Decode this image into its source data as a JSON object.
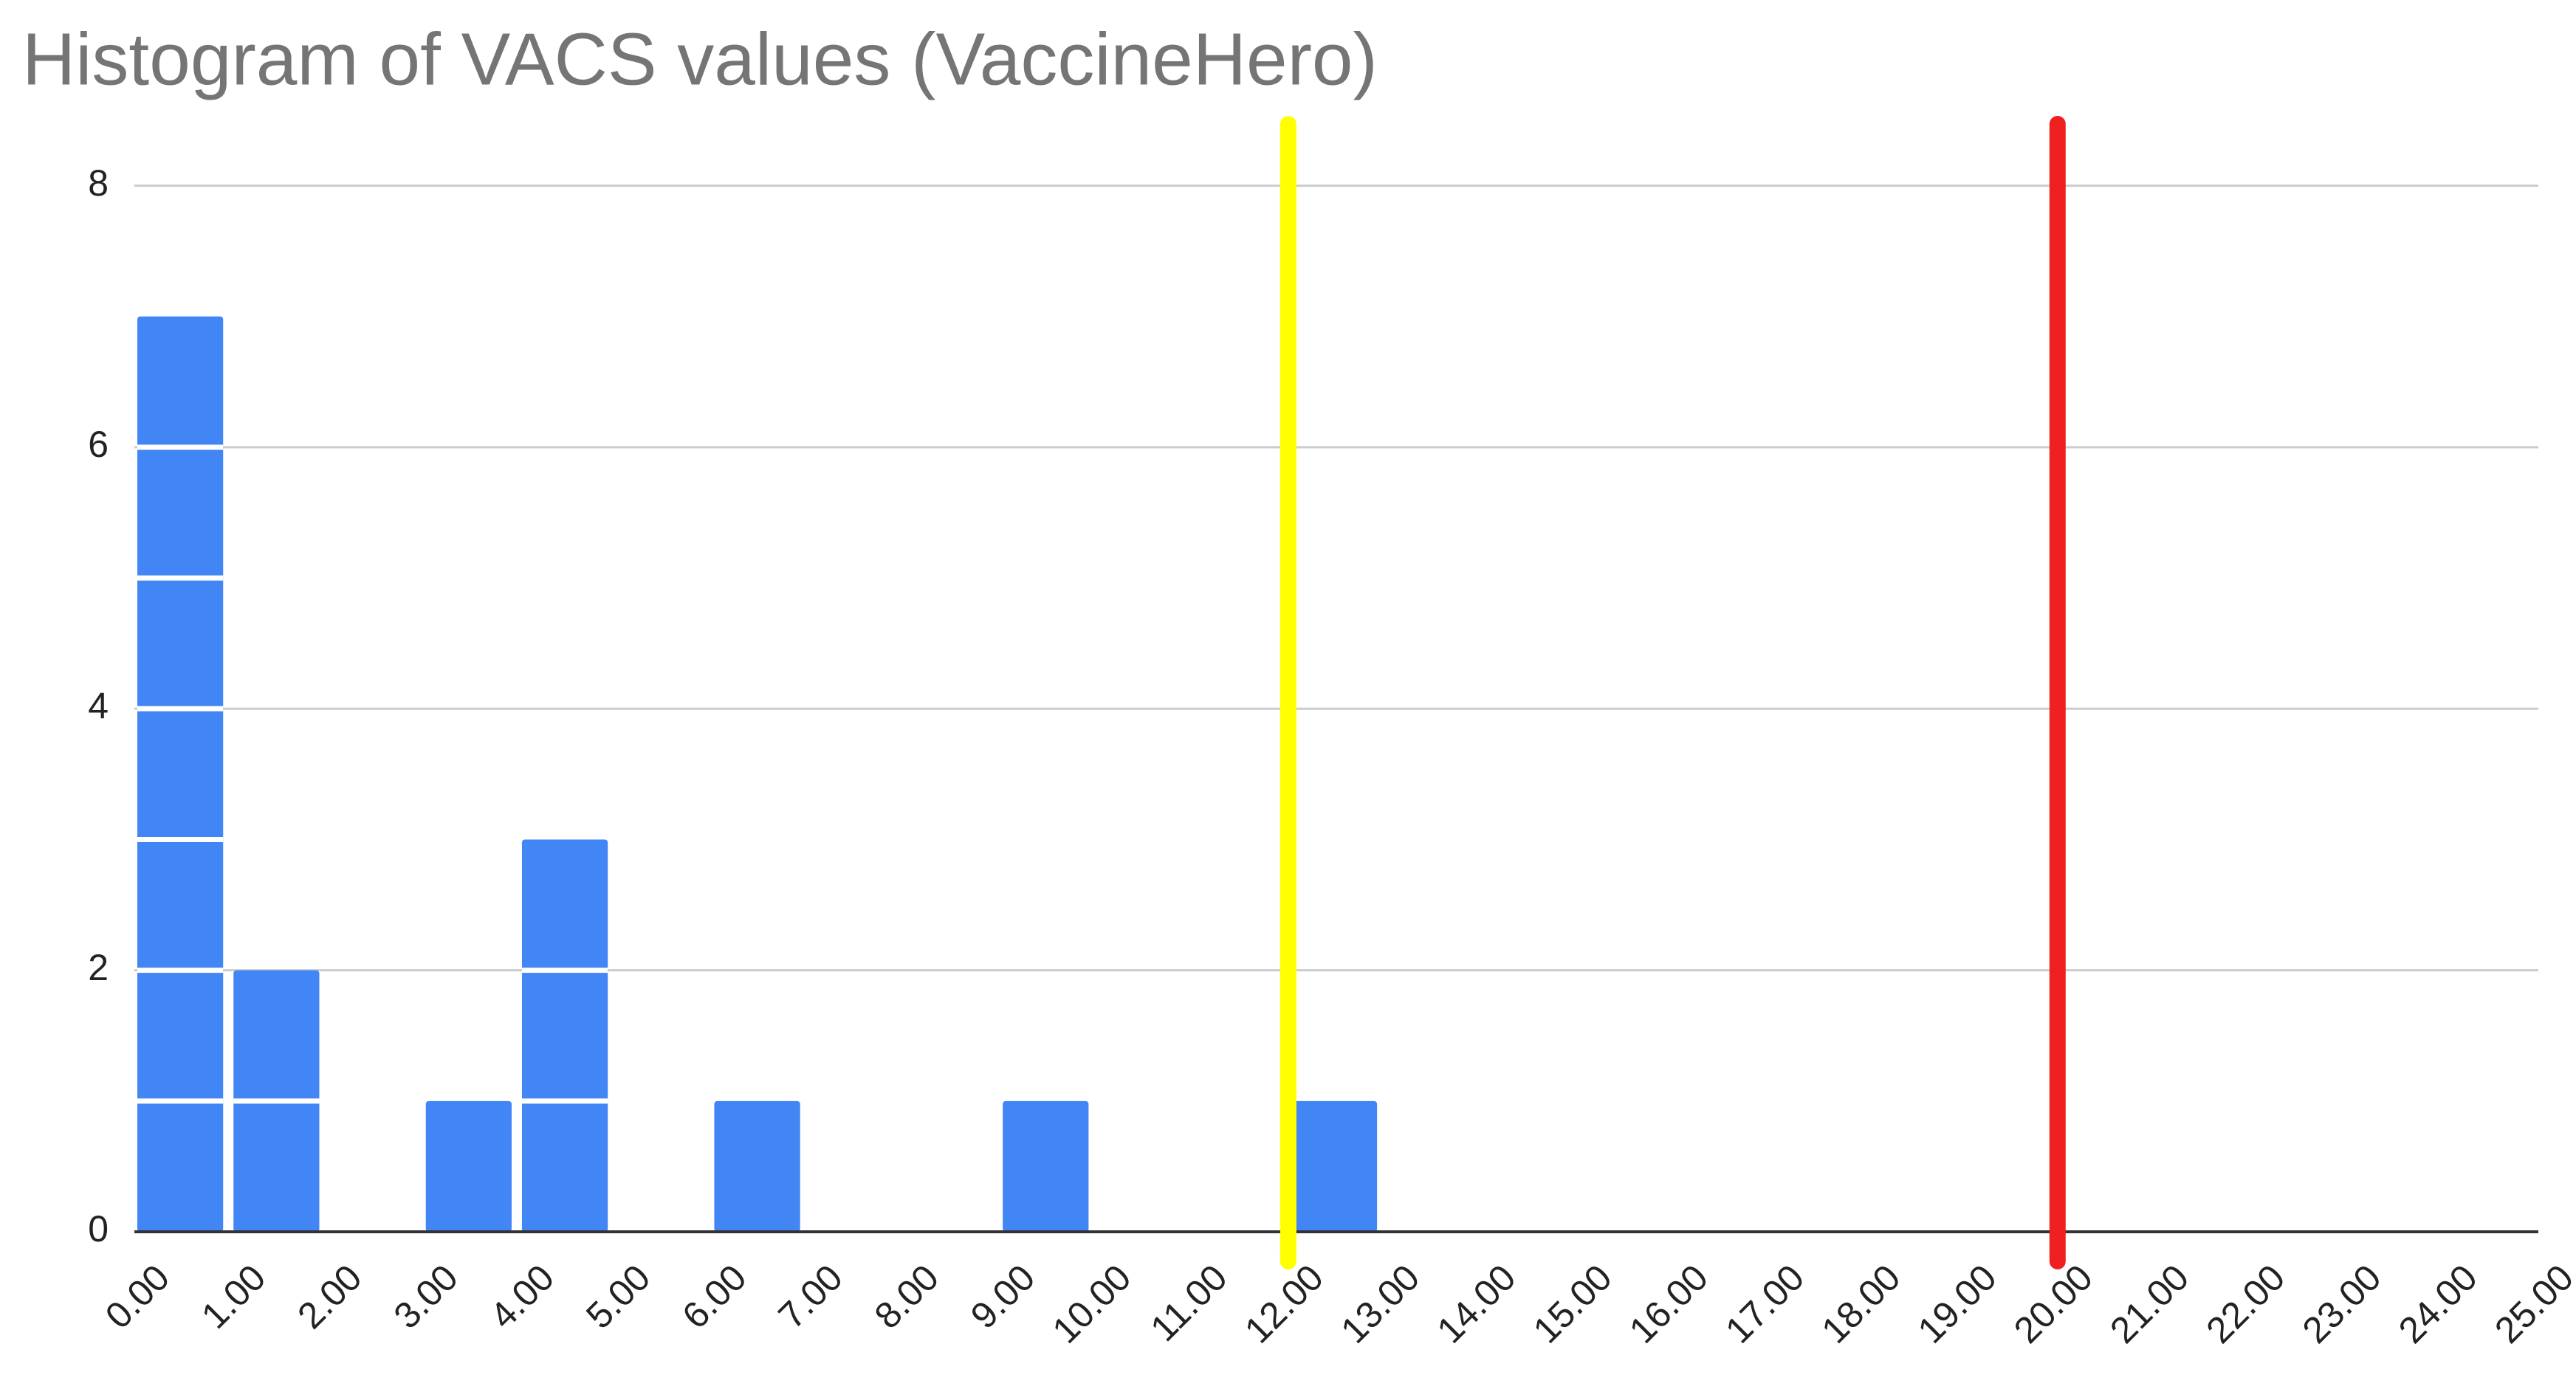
{
  "chart_data": {
    "type": "histogram",
    "title": "Histogram of VACS values (VaccineHero)",
    "bins": [
      0,
      1,
      2,
      3,
      4,
      5,
      6,
      7,
      8,
      9,
      10,
      11,
      12,
      13,
      14,
      15,
      16,
      17,
      18,
      19,
      20,
      21,
      22,
      23,
      24,
      25
    ],
    "values": [
      7,
      2,
      0,
      1,
      3,
      0,
      1,
      0,
      0,
      1,
      0,
      0,
      1,
      0,
      0,
      0,
      0,
      0,
      0,
      0,
      0,
      0,
      0,
      0,
      0
    ],
    "color": "#4285f4",
    "xlim": [
      0,
      25
    ],
    "ylim": [
      0,
      8.5
    ],
    "xticks": [
      {
        "value": 0,
        "label": "0.00"
      },
      {
        "value": 1,
        "label": "1.00"
      },
      {
        "value": 2,
        "label": "2.00"
      },
      {
        "value": 3,
        "label": "3.00"
      },
      {
        "value": 4,
        "label": "4.00"
      },
      {
        "value": 5,
        "label": "5.00"
      },
      {
        "value": 6,
        "label": "6.00"
      },
      {
        "value": 7,
        "label": "7.00"
      },
      {
        "value": 8,
        "label": "8.00"
      },
      {
        "value": 9,
        "label": "9.00"
      },
      {
        "value": 10,
        "label": "10.00"
      },
      {
        "value": 11,
        "label": "11.00"
      },
      {
        "value": 12,
        "label": "12.00"
      },
      {
        "value": 13,
        "label": "13.00"
      },
      {
        "value": 14,
        "label": "14.00"
      },
      {
        "value": 15,
        "label": "15.00"
      },
      {
        "value": 16,
        "label": "16.00"
      },
      {
        "value": 17,
        "label": "17.00"
      },
      {
        "value": 18,
        "label": "18.00"
      },
      {
        "value": 19,
        "label": "19.00"
      },
      {
        "value": 20,
        "label": "20.00"
      },
      {
        "value": 21,
        "label": "21.00"
      },
      {
        "value": 22,
        "label": "22.00"
      },
      {
        "value": 23,
        "label": "23.00"
      },
      {
        "value": 24,
        "label": "24.00"
      },
      {
        "value": 25,
        "label": "25.00"
      }
    ],
    "yticks": [
      0,
      2,
      4,
      6,
      8
    ],
    "grid": true,
    "reference_lines": [
      {
        "value": 12,
        "color": "#ffff00"
      },
      {
        "value": 20,
        "color": "#ee2020"
      }
    ]
  }
}
